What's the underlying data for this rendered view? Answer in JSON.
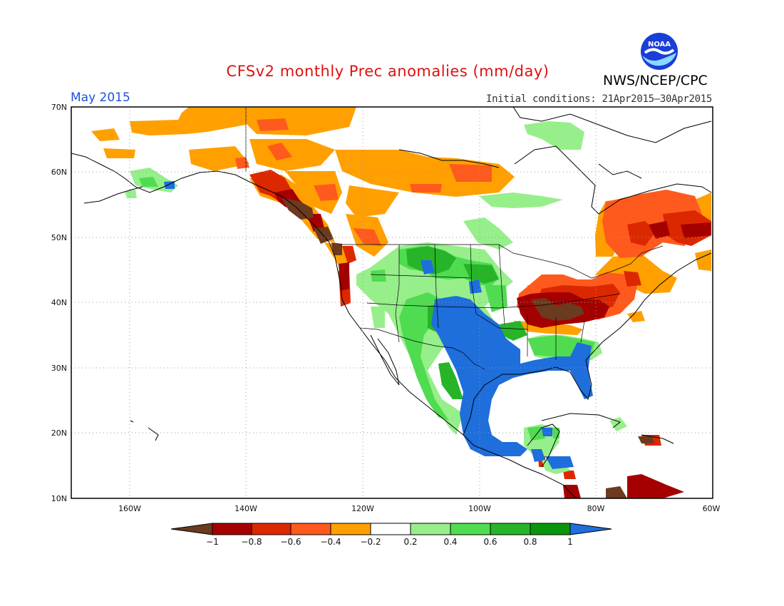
{
  "header": {
    "title": "CFSv2 monthly Prec anomalies (mm/day)",
    "month": "May 2015",
    "initial_conditions": "Initial conditions: 21Apr2015–30Apr2015",
    "agency": "NWS/NCEP/CPC",
    "logo_text": "NOAA"
  },
  "map": {
    "lat_labels": [
      "70N",
      "60N",
      "50N",
      "40N",
      "30N",
      "20N",
      "10N"
    ],
    "lon_labels": [
      "160W",
      "140W",
      "120W",
      "100W",
      "80W",
      "60W"
    ],
    "lat_range": [
      10,
      70
    ],
    "lon_range": [
      -170,
      -60
    ],
    "grid": "dotted every 10°"
  },
  "colorbar": {
    "labels": [
      "−1",
      "−0.8",
      "−0.6",
      "−0.4",
      "−0.2",
      "0.2",
      "0.4",
      "0.6",
      "0.8",
      "1"
    ],
    "colors": [
      "#6b3a1f",
      "#a50000",
      "#dc2800",
      "#ff5a1e",
      "#ffa000",
      "#ffffff",
      "#96ef8a",
      "#50dc50",
      "#28b428",
      "#0a960a",
      "#1e6edc"
    ]
  }
}
